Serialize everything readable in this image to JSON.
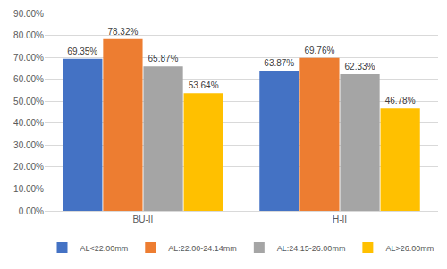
{
  "chart_data": {
    "type": "bar",
    "categories": [
      "BU-II",
      "H-II"
    ],
    "series": [
      {
        "name": "AL<22.00mm",
        "color": "#4472c4",
        "values": [
          69.35,
          63.87
        ],
        "value_labels": [
          "69.35%",
          "63.87%"
        ]
      },
      {
        "name": "AL:22.00-24.14mm",
        "color": "#ed7d31",
        "values": [
          78.32,
          69.76
        ],
        "value_labels": [
          "78.32%",
          "69.76%"
        ]
      },
      {
        "name": "AL:24.15-26.00mm",
        "color": "#a5a5a5",
        "values": [
          65.87,
          62.33
        ],
        "value_labels": [
          "65.87%",
          "62.33%"
        ]
      },
      {
        "name": "AL>26.00mm",
        "color": "#ffc000",
        "values": [
          53.64,
          46.78
        ],
        "value_labels": [
          "53.64%",
          "46.78%"
        ]
      }
    ],
    "ylim": [
      0,
      90
    ],
    "yticks": [
      {
        "value": 0,
        "label": "0.00%"
      },
      {
        "value": 10,
        "label": "10.00%"
      },
      {
        "value": 20,
        "label": "20.00%"
      },
      {
        "value": 30,
        "label": "30.00%"
      },
      {
        "value": 40,
        "label": "40.00%"
      },
      {
        "value": 50,
        "label": "50.00%"
      },
      {
        "value": 60,
        "label": "60.00%"
      },
      {
        "value": 70,
        "label": "70.00%"
      },
      {
        "value": 80,
        "label": "80.00%"
      },
      {
        "value": 90,
        "label": "90.00%"
      }
    ],
    "grid": true,
    "legend": "bottom",
    "data_labels": true
  }
}
